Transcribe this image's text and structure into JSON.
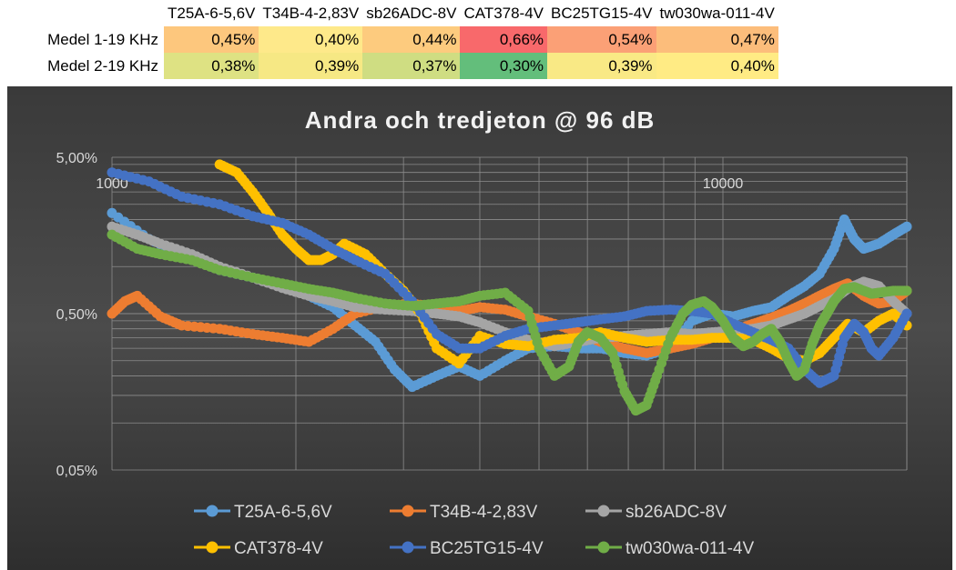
{
  "table": {
    "columns": [
      "T25A-6-5,6V",
      "T34B-4-2,83V",
      "sb26ADC-8V",
      "CAT378-4V",
      "BC25TG15-4V",
      "tw030wa-011-4V"
    ],
    "rows": [
      {
        "label": "Medel 1-19 KHz",
        "cells": [
          {
            "text": "0,45%",
            "color": "#fdc77d"
          },
          {
            "text": "0,40%",
            "color": "#fee98a"
          },
          {
            "text": "0,44%",
            "color": "#fdcb7e"
          },
          {
            "text": "0,66%",
            "color": "#f8696b"
          },
          {
            "text": "0,54%",
            "color": "#fba076"
          },
          {
            "text": "0,47%",
            "color": "#fcbd7b"
          }
        ]
      },
      {
        "label": "Medel 2-19 KHz",
        "cells": [
          {
            "text": "0,38%",
            "color": "#dee283"
          },
          {
            "text": "0,39%",
            "color": "#f6e884"
          },
          {
            "text": "0,37%",
            "color": "#cfdd82"
          },
          {
            "text": "0,30%",
            "color": "#63be7b"
          },
          {
            "text": "0,39%",
            "color": "#f9e985"
          },
          {
            "text": "0,40%",
            "color": "#ffeb84"
          }
        ]
      }
    ]
  },
  "chart_data": {
    "type": "scatter",
    "title": "Andra och tredjeton @ 96 dB",
    "xscale": "log",
    "yscale": "log",
    "xlim": [
      1000,
      20000
    ],
    "ylim": [
      0.0005,
      0.05
    ],
    "y_ticks": [
      {
        "value": 0.05,
        "label": "5,00%"
      },
      {
        "value": 0.005,
        "label": "0,50%"
      },
      {
        "value": 0.0005,
        "label": "0,05%"
      }
    ],
    "x_ticks": [
      {
        "value": 1000,
        "label": "1000"
      },
      {
        "value": 10000,
        "label": "10000"
      }
    ],
    "background": "#404040",
    "series": [
      {
        "name": "T25A-6-5,6V",
        "color": "#5b9bd5",
        "x": [
          1000,
          1150,
          1300,
          1500,
          1700,
          1900,
          2100,
          2300,
          2500,
          2700,
          2900,
          3100,
          3400,
          3700,
          4000,
          4400,
          4800,
          5300,
          5800,
          6300,
          6900,
          7500,
          8200,
          8900,
          9600,
          10400,
          11200,
          12000,
          12800,
          13600,
          14400,
          15200,
          15800,
          16400,
          17000,
          18000,
          19000,
          20000
        ],
        "y": [
          0.022,
          0.015,
          0.012,
          0.0095,
          0.0085,
          0.0075,
          0.0065,
          0.0055,
          0.0042,
          0.0033,
          0.0022,
          0.0017,
          0.002,
          0.0023,
          0.002,
          0.0025,
          0.003,
          0.0031,
          0.003,
          0.003,
          0.0028,
          0.0027,
          0.003,
          0.0045,
          0.005,
          0.0048,
          0.0052,
          0.0055,
          0.0065,
          0.0075,
          0.009,
          0.013,
          0.02,
          0.015,
          0.013,
          0.014,
          0.016,
          0.018
        ]
      },
      {
        "name": "T34B-4-2,83V",
        "color": "#ed7d31",
        "x": [
          1000,
          1050,
          1100,
          1200,
          1300,
          1500,
          1700,
          1900,
          2100,
          2300,
          2500,
          2800,
          3100,
          3400,
          3700,
          4000,
          4400,
          4800,
          5300,
          5800,
          6300,
          6900,
          7500,
          8200,
          8900,
          9600,
          10400,
          11200,
          12000,
          12800,
          13600,
          14400,
          15200,
          16000,
          17000,
          18000,
          19000,
          20000
        ],
        "y": [
          0.005,
          0.006,
          0.0065,
          0.0048,
          0.0042,
          0.004,
          0.0037,
          0.0035,
          0.0033,
          0.004,
          0.005,
          0.0056,
          0.0058,
          0.0055,
          0.0052,
          0.0055,
          0.0053,
          0.0048,
          0.0043,
          0.0038,
          0.0033,
          0.003,
          0.0028,
          0.003,
          0.0032,
          0.0035,
          0.0039,
          0.0043,
          0.0047,
          0.0052,
          0.0058,
          0.0065,
          0.0072,
          0.0078,
          0.0065,
          0.0058,
          0.006,
          0.007
        ]
      },
      {
        "name": "sb26ADC-8V",
        "color": "#a5a5a5",
        "x": [
          1000,
          1100,
          1200,
          1350,
          1500,
          1700,
          1900,
          2100,
          2300,
          2500,
          2800,
          3100,
          3400,
          3700,
          4000,
          4400,
          4800,
          5300,
          5800,
          6300,
          6900,
          7500,
          8200,
          8900,
          9600,
          10400,
          11200,
          12000,
          12800,
          13600,
          14400,
          15200,
          16000,
          17000,
          18000,
          19000,
          20000
        ],
        "y": [
          0.018,
          0.016,
          0.014,
          0.012,
          0.01,
          0.0085,
          0.0073,
          0.0065,
          0.006,
          0.0055,
          0.0053,
          0.0052,
          0.005,
          0.0048,
          0.0044,
          0.0038,
          0.0034,
          0.0031,
          0.0033,
          0.0035,
          0.0036,
          0.0037,
          0.0038,
          0.0037,
          0.0038,
          0.0039,
          0.004,
          0.0042,
          0.0046,
          0.005,
          0.0056,
          0.0062,
          0.0072,
          0.008,
          0.0075,
          0.006,
          0.005
        ]
      },
      {
        "name": "CAT378-4V",
        "color": "#ffc000",
        "x": [
          1500,
          1600,
          1700,
          1800,
          1900,
          2000,
          2100,
          2200,
          2300,
          2400,
          2600,
          2800,
          3000,
          3200,
          3400,
          3700,
          4000,
          4400,
          4800,
          5300,
          5800,
          6300,
          6900,
          7500,
          8200,
          8900,
          9600,
          10400,
          11200,
          12000,
          12800,
          13600,
          14400,
          15200,
          16000,
          17000,
          18000,
          19000,
          20000
        ],
        "y": [
          0.045,
          0.04,
          0.03,
          0.022,
          0.016,
          0.013,
          0.011,
          0.011,
          0.012,
          0.014,
          0.012,
          0.009,
          0.007,
          0.005,
          0.003,
          0.0024,
          0.0036,
          0.0032,
          0.0031,
          0.0034,
          0.0035,
          0.0038,
          0.0035,
          0.0033,
          0.0034,
          0.0034,
          0.0035,
          0.0035,
          0.0034,
          0.003,
          0.0026,
          0.0025,
          0.0028,
          0.0035,
          0.0043,
          0.0038,
          0.0045,
          0.005,
          0.0042
        ]
      },
      {
        "name": "BC25TG15-4V",
        "color": "#4472c4",
        "x": [
          1000,
          1150,
          1300,
          1500,
          1700,
          1900,
          2100,
          2300,
          2500,
          2800,
          3100,
          3400,
          3700,
          4000,
          4400,
          4800,
          5300,
          5800,
          6300,
          6900,
          7500,
          8200,
          8900,
          9600,
          10400,
          11200,
          12000,
          12800,
          13600,
          14400,
          15200,
          15800,
          16400,
          17000,
          17500,
          18000,
          19000,
          20000
        ],
        "y": [
          0.04,
          0.035,
          0.028,
          0.025,
          0.021,
          0.019,
          0.016,
          0.013,
          0.011,
          0.009,
          0.006,
          0.0037,
          0.003,
          0.003,
          0.0036,
          0.004,
          0.0042,
          0.0044,
          0.0046,
          0.0048,
          0.0052,
          0.0053,
          0.0052,
          0.005,
          0.0043,
          0.0038,
          0.0034,
          0.003,
          0.0022,
          0.0018,
          0.002,
          0.0035,
          0.0043,
          0.0038,
          0.003,
          0.0027,
          0.0035,
          0.005
        ]
      },
      {
        "name": "tw030wa-011-4V",
        "color": "#70ad47",
        "x": [
          1000,
          1100,
          1200,
          1350,
          1500,
          1700,
          1900,
          2100,
          2300,
          2500,
          2800,
          3100,
          3400,
          3700,
          4000,
          4400,
          4800,
          5000,
          5300,
          5600,
          5800,
          6000,
          6300,
          6600,
          6900,
          7200,
          7500,
          7800,
          8200,
          8600,
          8900,
          9300,
          9600,
          10000,
          10400,
          10800,
          11200,
          11600,
          12000,
          12400,
          12800,
          13200,
          13600,
          14000,
          14400,
          14800,
          15200,
          15800,
          16400,
          17000,
          17500,
          18000,
          19000,
          20000
        ],
        "y": [
          0.016,
          0.013,
          0.012,
          0.011,
          0.0095,
          0.0085,
          0.0078,
          0.0072,
          0.0068,
          0.0063,
          0.0058,
          0.0056,
          0.0058,
          0.006,
          0.0065,
          0.0068,
          0.0052,
          0.003,
          0.002,
          0.0023,
          0.0033,
          0.0038,
          0.0035,
          0.0028,
          0.0016,
          0.0012,
          0.0013,
          0.002,
          0.0035,
          0.005,
          0.0057,
          0.006,
          0.0055,
          0.0045,
          0.0035,
          0.0031,
          0.0033,
          0.0037,
          0.004,
          0.0033,
          0.0025,
          0.002,
          0.0022,
          0.0032,
          0.0042,
          0.005,
          0.006,
          0.0072,
          0.0074,
          0.007,
          0.0067,
          0.0068,
          0.007,
          0.007
        ]
      }
    ]
  }
}
